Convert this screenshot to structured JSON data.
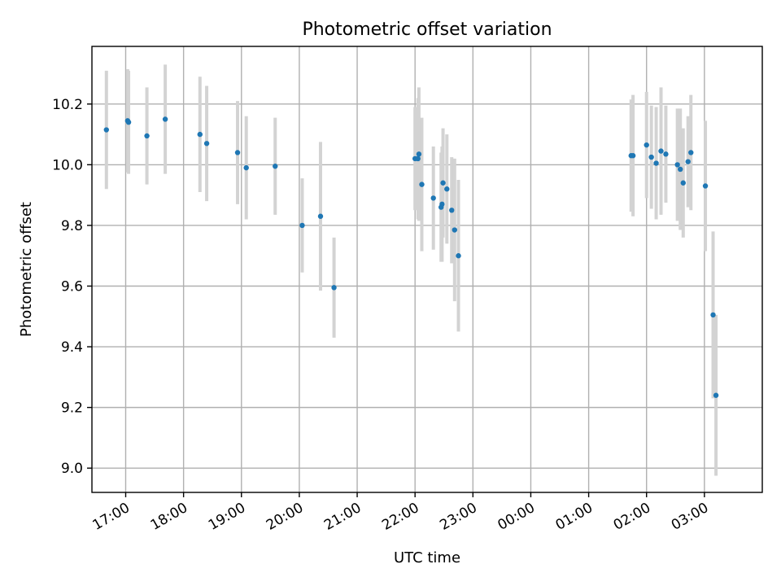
{
  "chart_data": {
    "type": "scatter",
    "title": "Photometric offset variation",
    "xlabel": "UTC time",
    "ylabel": "Photometric offset",
    "x_unit": "hours (UTC, continuing past midnight)",
    "xlim": [
      "16:25",
      "04:00"
    ],
    "ylim": [
      8.92,
      10.39
    ],
    "x_ticks": [
      "17:00",
      "18:00",
      "19:00",
      "20:00",
      "21:00",
      "22:00",
      "23:00",
      "00:00",
      "01:00",
      "02:00",
      "03:00"
    ],
    "y_ticks": [
      "9.0",
      "9.2",
      "9.4",
      "9.6",
      "9.8",
      "10.0",
      "10.2"
    ],
    "grid": true,
    "marker_color": "#1f77b4",
    "errorbar_color": "#d3d3d3",
    "points": [
      {
        "x": "16:40",
        "y": 10.115,
        "err": 0.195
      },
      {
        "x": "17:02",
        "y": 10.145,
        "err": 0.17
      },
      {
        "x": "17:03",
        "y": 10.14,
        "err": 0.17
      },
      {
        "x": "17:22",
        "y": 10.095,
        "err": 0.16
      },
      {
        "x": "17:41",
        "y": 10.15,
        "err": 0.18
      },
      {
        "x": "18:17",
        "y": 10.1,
        "err": 0.19
      },
      {
        "x": "18:24",
        "y": 10.07,
        "err": 0.19
      },
      {
        "x": "18:56",
        "y": 10.04,
        "err": 0.17
      },
      {
        "x": "19:05",
        "y": 9.99,
        "err": 0.17
      },
      {
        "x": "19:35",
        "y": 9.995,
        "err": 0.16
      },
      {
        "x": "20:03",
        "y": 9.8,
        "err": 0.155
      },
      {
        "x": "20:22",
        "y": 9.83,
        "err": 0.245
      },
      {
        "x": "20:36",
        "y": 9.595,
        "err": 0.165
      },
      {
        "x": "22:00",
        "y": 10.02,
        "err": 0.17
      },
      {
        "x": "22:03",
        "y": 10.02,
        "err": 0.2
      },
      {
        "x": "22:04",
        "y": 10.035,
        "err": 0.22
      },
      {
        "x": "22:07",
        "y": 9.935,
        "err": 0.22
      },
      {
        "x": "22:19",
        "y": 9.89,
        "err": 0.17
      },
      {
        "x": "22:27",
        "y": 9.86,
        "err": 0.18
      },
      {
        "x": "22:28",
        "y": 9.87,
        "err": 0.19
      },
      {
        "x": "22:29",
        "y": 9.94,
        "err": 0.18
      },
      {
        "x": "22:33",
        "y": 9.92,
        "err": 0.18
      },
      {
        "x": "22:38",
        "y": 9.85,
        "err": 0.175
      },
      {
        "x": "22:41",
        "y": 9.785,
        "err": 0.235
      },
      {
        "x": "22:45",
        "y": 9.7,
        "err": 0.25
      },
      {
        "x": "01:44",
        "y": 10.03,
        "err": 0.185
      },
      {
        "x": "01:46",
        "y": 10.03,
        "err": 0.2
      },
      {
        "x": "02:00",
        "y": 10.065,
        "err": 0.175
      },
      {
        "x": "02:05",
        "y": 10.025,
        "err": 0.17
      },
      {
        "x": "02:10",
        "y": 10.005,
        "err": 0.185
      },
      {
        "x": "02:15",
        "y": 10.045,
        "err": 0.21
      },
      {
        "x": "02:20",
        "y": 10.035,
        "err": 0.16
      },
      {
        "x": "02:32",
        "y": 10.0,
        "err": 0.185
      },
      {
        "x": "02:35",
        "y": 9.985,
        "err": 0.2
      },
      {
        "x": "02:38",
        "y": 9.94,
        "err": 0.18
      },
      {
        "x": "02:43",
        "y": 10.01,
        "err": 0.15
      },
      {
        "x": "02:46",
        "y": 10.04,
        "err": 0.19
      },
      {
        "x": "03:01",
        "y": 9.93,
        "err": 0.215
      },
      {
        "x": "03:09",
        "y": 9.505,
        "err": 0.275
      },
      {
        "x": "03:12",
        "y": 9.24,
        "err": 0.265
      }
    ]
  }
}
